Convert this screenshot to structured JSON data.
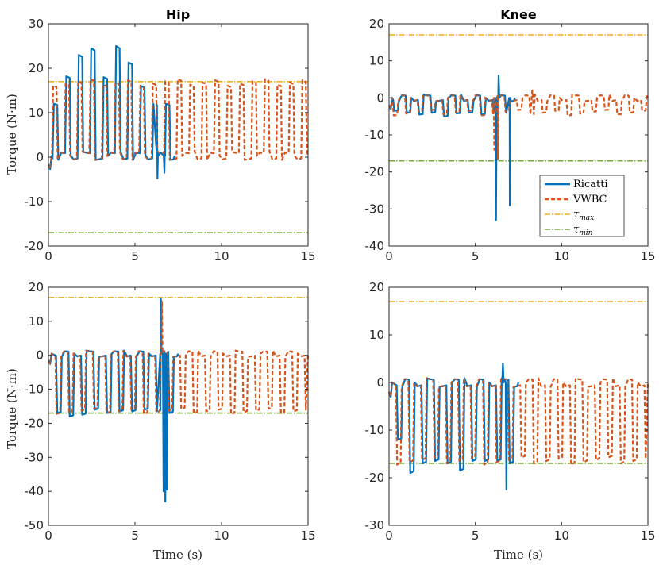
{
  "colors": {
    "ricatti": "#0072BD",
    "vwbc": "#D95319",
    "tau_max": "#EDB120",
    "tau_min": "#77AC30",
    "axis": "#262626"
  },
  "legend": {
    "ricatti": "Ricatti",
    "vwbc": "VWBC",
    "tau_max_base": "τ",
    "tau_max_sub": "max",
    "tau_min_base": "τ",
    "tau_min_sub": "min"
  },
  "chart_data": [
    {
      "id": "hip-top",
      "type": "line",
      "title": "Hip",
      "xlabel": "",
      "ylabel": "Torque (N·m)",
      "xlim": [
        0,
        15
      ],
      "ylim": [
        -20,
        30
      ],
      "xticks": [
        0,
        5,
        10,
        15
      ],
      "yticks": [
        -20,
        -10,
        0,
        10,
        20,
        30
      ],
      "tau_max": 17,
      "tau_min": -17,
      "ricatti_end": 7.3,
      "vwbc_end": 15,
      "step_period": 0.72,
      "step_offset": 0.25,
      "baseline": 0.3,
      "vwbc_peak": 16.8,
      "ricatti_peaks": [
        [
          0.4,
          12
        ],
        [
          1.2,
          18.2
        ],
        [
          1.9,
          23
        ],
        [
          2.9,
          24.5
        ],
        [
          3.7,
          18
        ],
        [
          4.6,
          25
        ],
        [
          5.4,
          21.3
        ],
        [
          6.1,
          16
        ],
        [
          6.8,
          12
        ]
      ],
      "ricatti_spikes": [
        [
          6.3,
          -4.8
        ],
        [
          6.7,
          -3.5
        ]
      ],
      "vwbc_spikes": []
    },
    {
      "id": "knee-top",
      "type": "line",
      "title": "Knee",
      "xlabel": "",
      "ylabel": "",
      "xlim": [
        0,
        15
      ],
      "ylim": [
        -40,
        20
      ],
      "xticks": [
        0,
        5,
        10,
        15
      ],
      "yticks": [
        -40,
        -30,
        -20,
        -10,
        0,
        10,
        20
      ],
      "tau_max": 17,
      "tau_min": -17,
      "ricatti_end": 7.3,
      "vwbc_end": 15,
      "step_period": 0.72,
      "step_offset": 0.25,
      "baseline": 0,
      "vwbc_peak": -4,
      "ricatti_peaks": [
        [
          0.4,
          -3.5
        ],
        [
          1.1,
          -4
        ],
        [
          1.9,
          -4.5
        ],
        [
          2.6,
          -4
        ],
        [
          3.3,
          -5
        ],
        [
          4.1,
          -4.2
        ],
        [
          4.8,
          -4
        ],
        [
          5.5,
          -4.5
        ]
      ],
      "ricatti_spikes": [
        [
          6.2,
          -33
        ],
        [
          6.35,
          6
        ],
        [
          7.0,
          -29
        ]
      ],
      "vwbc_spikes": [
        [
          6.1,
          -14
        ],
        [
          6.3,
          -16.5
        ],
        [
          8.3,
          2
        ]
      ]
    },
    {
      "id": "hip-bottom",
      "type": "line",
      "title": "",
      "xlabel": "Time (s)",
      "ylabel": "Torque (N·m)",
      "xlim": [
        0,
        15
      ],
      "ylim": [
        -50,
        20
      ],
      "xticks": [
        0,
        5,
        10,
        15
      ],
      "yticks": [
        -50,
        -40,
        -30,
        -20,
        -10,
        0,
        10,
        20
      ],
      "tau_max": 17,
      "tau_min": -17,
      "ricatti_end": 7.5,
      "vwbc_end": 15,
      "step_period": 0.72,
      "step_offset": 0.45,
      "baseline": 0.5,
      "vwbc_peak": -16.5,
      "ricatti_peaks": [
        [
          0.7,
          -17
        ],
        [
          1.5,
          -18
        ],
        [
          2.2,
          -17.5
        ],
        [
          2.9,
          -16
        ],
        [
          3.7,
          -17
        ],
        [
          4.5,
          -16.5
        ],
        [
          5.3,
          -16.5
        ],
        [
          6.0,
          -16
        ],
        [
          7.3,
          -16.5
        ]
      ],
      "ricatti_spikes": [
        [
          6.5,
          16.5
        ],
        [
          6.65,
          -40
        ],
        [
          6.75,
          -43
        ],
        [
          6.85,
          -39.5
        ]
      ],
      "vwbc_spikes": [
        [
          6.55,
          16
        ]
      ]
    },
    {
      "id": "knee-bottom",
      "type": "line",
      "title": "",
      "xlabel": "Time (s)",
      "ylabel": "",
      "xlim": [
        0,
        15
      ],
      "ylim": [
        -30,
        20
      ],
      "xticks": [
        0,
        5,
        10,
        15
      ],
      "yticks": [
        -30,
        -20,
        -10,
        0,
        10,
        20
      ],
      "tau_max": 17,
      "tau_min": -17,
      "ricatti_end": 7.5,
      "vwbc_end": 15,
      "step_period": 0.72,
      "step_offset": 0.45,
      "baseline": 0,
      "vwbc_peak": -16.5,
      "ricatti_peaks": [
        [
          0.2,
          -12
        ],
        [
          0.9,
          -19
        ],
        [
          1.5,
          -17
        ],
        [
          2.2,
          -16.5
        ],
        [
          3.0,
          -17
        ],
        [
          3.6,
          -18.5
        ],
        [
          4.3,
          -16.5
        ],
        [
          5.1,
          -16.5
        ],
        [
          5.8,
          -16.5
        ],
        [
          6.5,
          -17
        ],
        [
          7.4,
          -19
        ]
      ],
      "ricatti_spikes": [
        [
          6.6,
          4
        ],
        [
          6.8,
          -22.5
        ]
      ],
      "vwbc_spikes": []
    }
  ]
}
